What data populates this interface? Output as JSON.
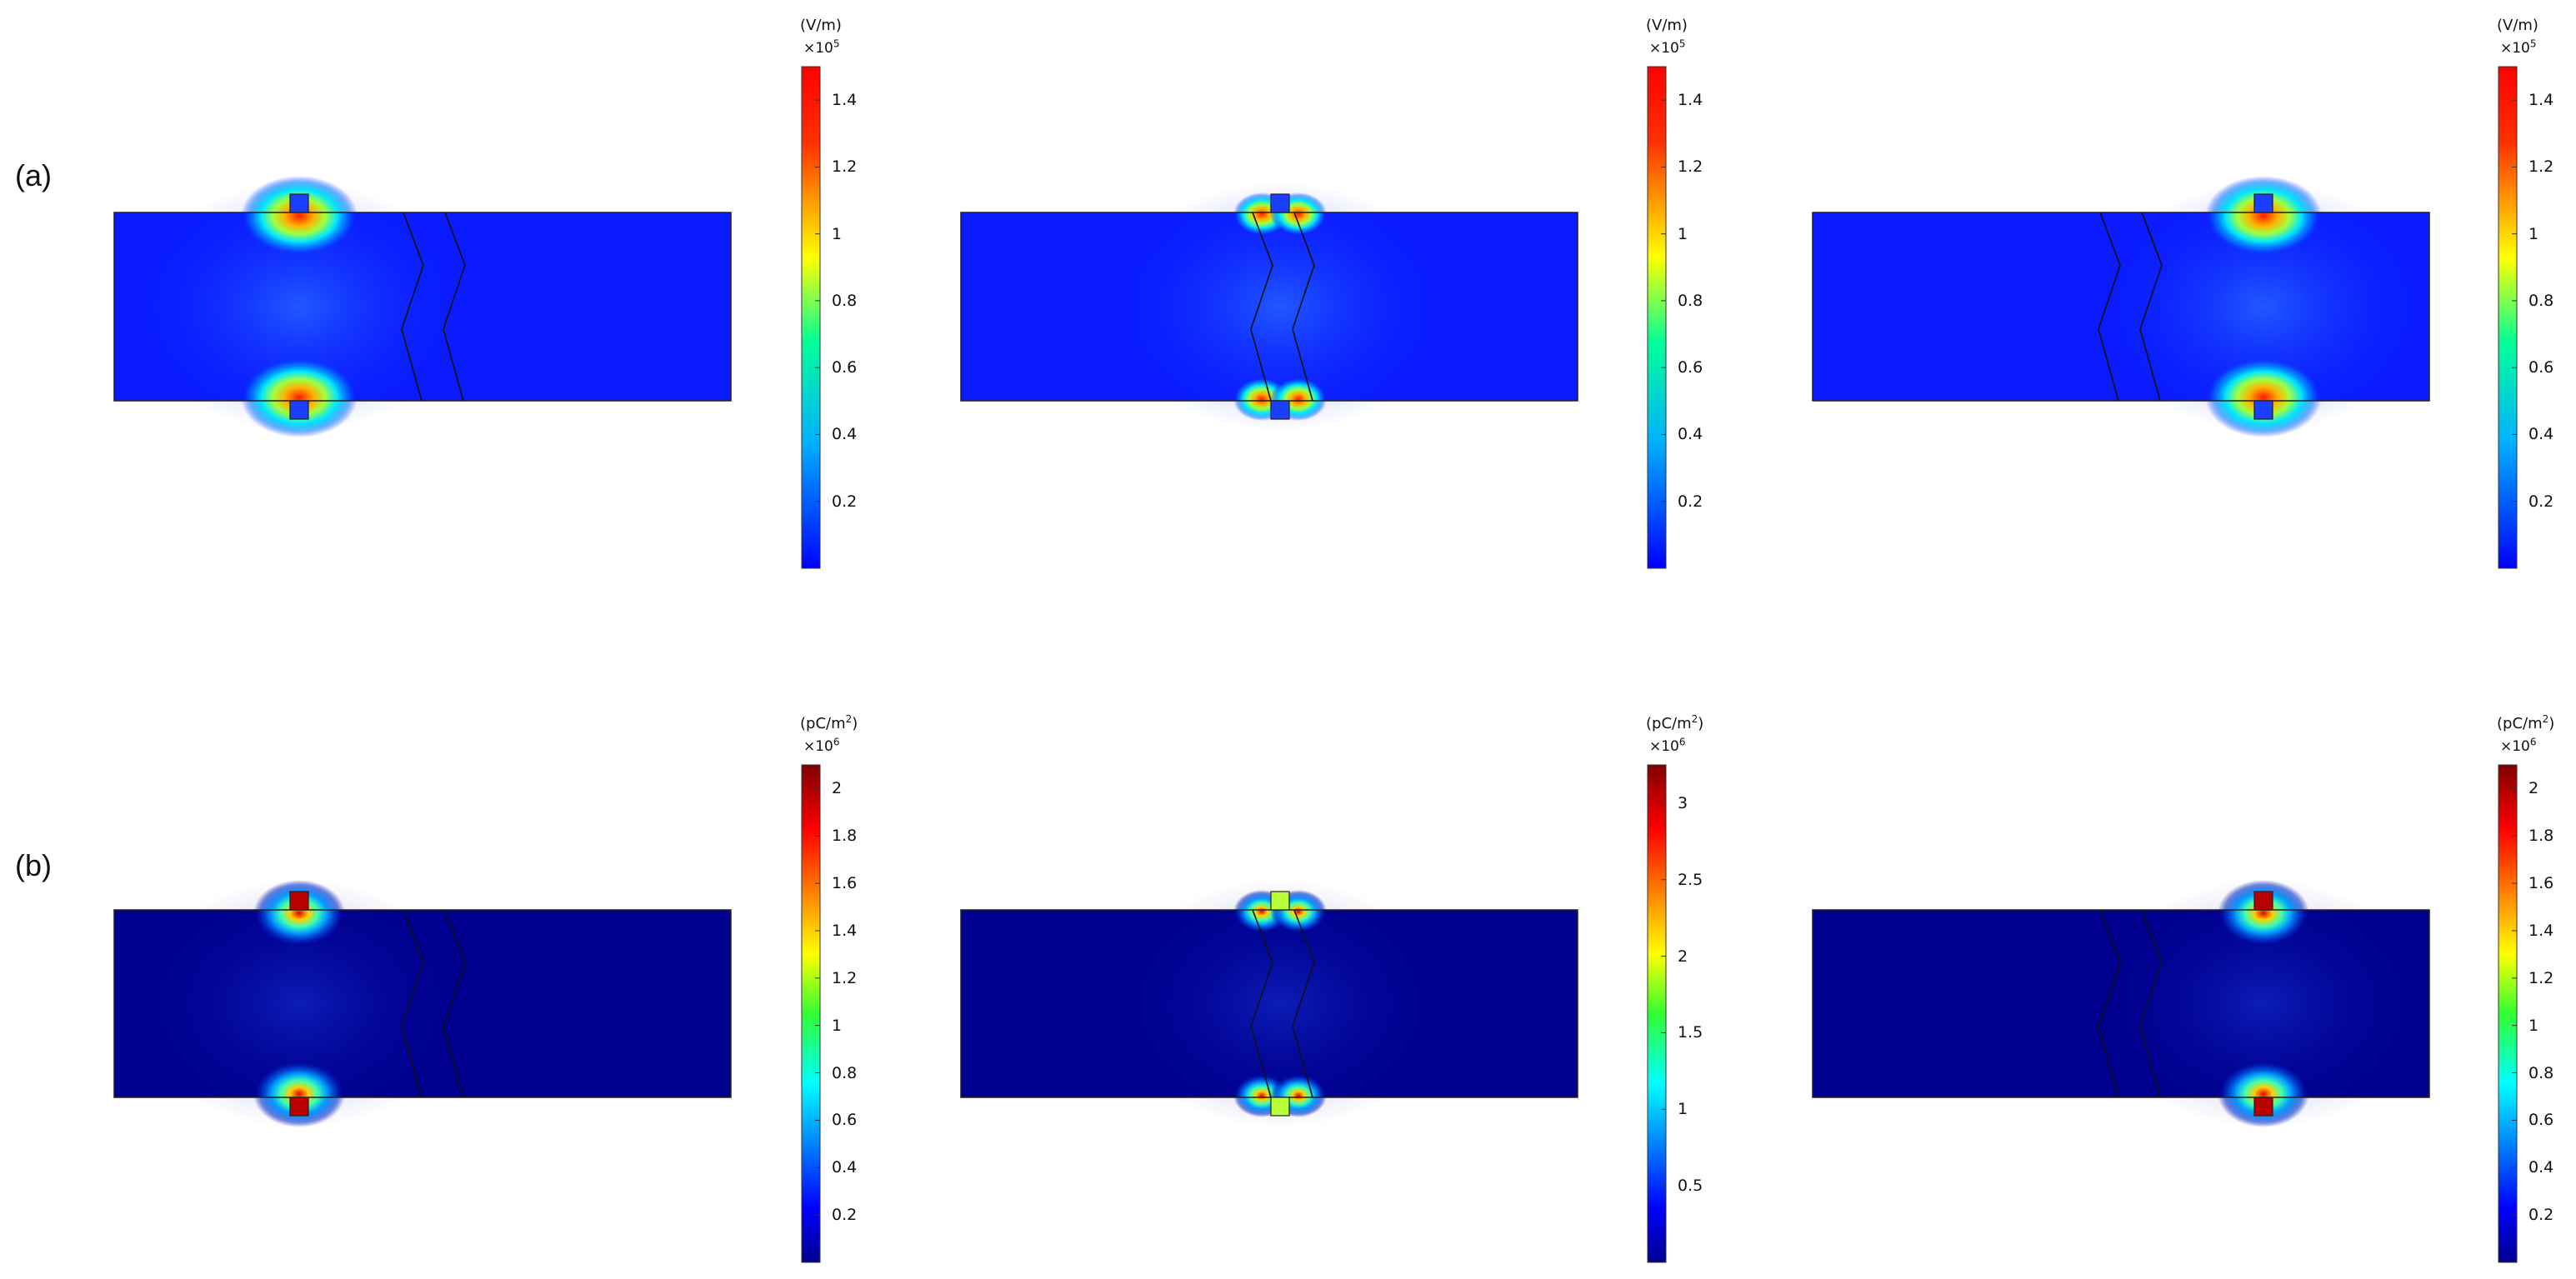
{
  "rows": [
    {
      "label": "(a)",
      "quantity": "electric-field",
      "colorbar": {
        "unit_main": "(V/m)",
        "unit_sup": "",
        "multiplier_base": "×10",
        "multiplier_exp": "5",
        "ticks": [
          "1.4",
          "1.2",
          "1",
          "0.8",
          "0.6",
          "0.4",
          "0.2"
        ],
        "tick_values": [
          1.4,
          1.2,
          1.0,
          0.8,
          0.6,
          0.4,
          0.2
        ],
        "range": [
          0.0,
          1.5
        ]
      },
      "panels": [
        {
          "electrode_position": "left",
          "electrode_color": "#1a3fff",
          "background": "#0a1cff"
        },
        {
          "electrode_position": "center",
          "electrode_color": "#1a3fff",
          "background": "#0a1cff"
        },
        {
          "electrode_position": "right",
          "electrode_color": "#1a3fff",
          "background": "#0a1cff"
        }
      ]
    },
    {
      "label": "(b)",
      "quantity": "charge-density",
      "panels": [
        {
          "electrode_position": "left",
          "electrode_color": "#b80000",
          "background": "#00008f",
          "colorbar": {
            "unit_main": "(pC/m",
            "unit_sup": "2",
            "unit_close": ")",
            "multiplier_base": "×10",
            "multiplier_exp": "6",
            "ticks": [
              "2",
              "1.8",
              "1.6",
              "1.4",
              "1.2",
              "1",
              "0.8",
              "0.6",
              "0.4",
              "0.2"
            ],
            "tick_values": [
              2,
              1.8,
              1.6,
              1.4,
              1.2,
              1.0,
              0.8,
              0.6,
              0.4,
              0.2
            ],
            "range": [
              0.0,
              2.1
            ]
          }
        },
        {
          "electrode_position": "center",
          "electrode_color": "#b8ff3a",
          "background": "#00008f",
          "colorbar": {
            "unit_main": "(pC/m",
            "unit_sup": "2",
            "unit_close": ")",
            "multiplier_base": "×10",
            "multiplier_exp": "6",
            "ticks": [
              "3",
              "2.5",
              "2",
              "1.5",
              "1",
              "0.5"
            ],
            "tick_values": [
              3,
              2.5,
              2,
              1.5,
              1,
              0.5
            ],
            "range": [
              0.0,
              3.25
            ]
          }
        },
        {
          "electrode_position": "right",
          "electrode_color": "#b80000",
          "background": "#00008f",
          "colorbar": {
            "unit_main": "(pC/m",
            "unit_sup": "2",
            "unit_close": ")",
            "multiplier_base": "×10",
            "multiplier_exp": "6",
            "ticks": [
              "2",
              "1.8",
              "1.6",
              "1.4",
              "1.2",
              "1",
              "0.8",
              "0.6",
              "0.4",
              "0.2"
            ],
            "tick_values": [
              2,
              1.8,
              1.6,
              1.4,
              1.2,
              1.0,
              0.8,
              0.6,
              0.4,
              0.2
            ],
            "range": [
              0.0,
              2.1
            ]
          }
        }
      ]
    }
  ],
  "colormap": "jet"
}
